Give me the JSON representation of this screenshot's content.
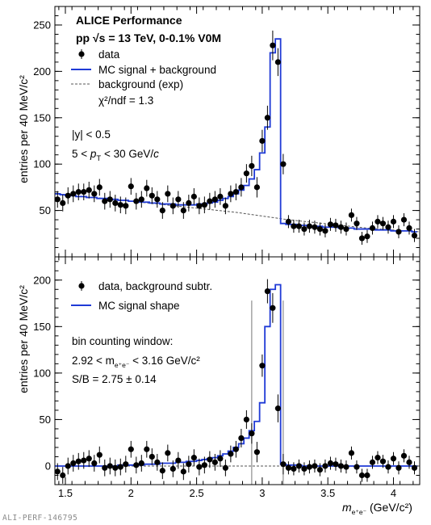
{
  "footer_id": "ALI-PERF-146795",
  "chart_data": [
    {
      "type": "scatter",
      "panel": "top",
      "xlim": [
        1.42,
        4.2
      ],
      "ylim": [
        0,
        270
      ],
      "xticks": [
        1.5,
        2,
        2.5,
        3,
        3.5,
        4
      ],
      "xtick_labels": [
        "1.5",
        "2",
        "2.5",
        "3",
        "3.5",
        "4"
      ],
      "yticks": [
        50,
        100,
        150,
        200,
        250
      ],
      "ytick_labels": [
        "50",
        "100",
        "150",
        "200",
        "250"
      ],
      "ylabel": "entries per 40 MeV/c²",
      "title_lines": [
        "ALICE Performance",
        "pp  √s = 13 TeV, 0-0.1% V0M"
      ],
      "legend": [
        {
          "marker": "point",
          "label": "data"
        },
        {
          "marker": "line-blue",
          "label": "MC signal + background"
        },
        {
          "marker": "line-dashed",
          "label": "background (exp)"
        }
      ],
      "fit_text": "χ²/ndf =  1.3",
      "cut_texts": [
        "|y| < 0.5",
        "5 < pT < 30 GeV/c"
      ],
      "data_points": {
        "x": [
          1.44,
          1.48,
          1.52,
          1.56,
          1.6,
          1.64,
          1.68,
          1.72,
          1.76,
          1.8,
          1.84,
          1.88,
          1.92,
          1.96,
          2.0,
          2.04,
          2.08,
          2.12,
          2.16,
          2.2,
          2.24,
          2.28,
          2.32,
          2.36,
          2.4,
          2.44,
          2.48,
          2.52,
          2.56,
          2.6,
          2.64,
          2.68,
          2.72,
          2.76,
          2.8,
          2.84,
          2.88,
          2.92,
          2.96,
          3.0,
          3.04,
          3.08,
          3.12,
          3.16,
          3.2,
          3.24,
          3.28,
          3.32,
          3.36,
          3.4,
          3.44,
          3.48,
          3.52,
          3.56,
          3.6,
          3.64,
          3.68,
          3.72,
          3.76,
          3.8,
          3.84,
          3.88,
          3.92,
          3.96,
          4.0,
          4.04,
          4.08,
          4.12,
          4.16
        ],
        "y": [
          62,
          58,
          66,
          68,
          70,
          70,
          72,
          68,
          75,
          60,
          62,
          58,
          56,
          55,
          76,
          60,
          62,
          74,
          66,
          62,
          50,
          68,
          55,
          62,
          50,
          58,
          65,
          55,
          56,
          60,
          62,
          65,
          55,
          68,
          70,
          75,
          90,
          98,
          75,
          125,
          150,
          228,
          210,
          100,
          38,
          33,
          33,
          30,
          33,
          32,
          30,
          28,
          35,
          34,
          32,
          30,
          45,
          36,
          20,
          22,
          31,
          38,
          36,
          32,
          38,
          27,
          40,
          31,
          23
        ],
        "err": [
          9,
          9,
          9,
          9,
          9,
          9,
          9,
          9,
          9,
          9,
          9,
          9,
          9,
          9,
          9,
          9,
          9,
          9,
          9,
          9,
          9,
          9,
          9,
          9,
          9,
          9,
          9,
          9,
          9,
          9,
          9,
          9,
          9,
          9,
          9,
          10,
          10,
          11,
          11,
          12,
          13,
          16,
          15,
          11,
          7,
          7,
          7,
          7,
          7,
          7,
          7,
          7,
          7,
          7,
          7,
          7,
          7,
          7,
          7,
          7,
          7,
          7,
          7,
          7,
          7,
          7,
          7,
          7,
          7
        ]
      },
      "model_hist": {
        "edges": [
          1.42,
          1.46,
          1.5,
          1.54,
          1.58,
          1.62,
          1.66,
          1.7,
          1.74,
          1.78,
          1.82,
          1.86,
          1.9,
          1.94,
          1.98,
          2.02,
          2.06,
          2.1,
          2.14,
          2.18,
          2.22,
          2.26,
          2.3,
          2.34,
          2.38,
          2.42,
          2.46,
          2.5,
          2.54,
          2.58,
          2.62,
          2.66,
          2.7,
          2.74,
          2.78,
          2.82,
          2.86,
          2.9,
          2.94,
          2.98,
          3.02,
          3.06,
          3.1,
          3.14,
          3.18,
          3.22,
          3.26,
          3.3,
          3.34,
          3.38,
          3.42,
          3.46,
          3.5,
          3.54,
          3.58,
          3.62,
          3.66,
          3.7,
          3.74,
          3.78,
          3.82,
          3.86,
          3.9,
          3.94,
          3.98,
          4.02,
          4.06,
          4.1,
          4.14,
          4.18
        ],
        "values": [
          68,
          67,
          66,
          66,
          65,
          65,
          64,
          64,
          63,
          63,
          62,
          62,
          61,
          61,
          60,
          60,
          59,
          59,
          58,
          58,
          57,
          57,
          57,
          56,
          56,
          56,
          56,
          57,
          57,
          58,
          59,
          61,
          63,
          65,
          68,
          72,
          77,
          84,
          94,
          112,
          140,
          220,
          235,
          36,
          35,
          35,
          34,
          34,
          33,
          33,
          33,
          32,
          32,
          32,
          31,
          31,
          31,
          30,
          30,
          30,
          30,
          29,
          29,
          29,
          28,
          28,
          28,
          28,
          27
        ]
      },
      "background_curve": {
        "x": [
          1.42,
          1.6,
          1.8,
          2.0,
          2.2,
          2.4,
          2.6,
          2.8,
          3.0,
          3.2,
          3.4,
          3.6,
          3.8,
          4.0,
          4.2
        ],
        "y": [
          68,
          65,
          63,
          60,
          57,
          54,
          51,
          48,
          44,
          40,
          37,
          34,
          31,
          29,
          27
        ]
      }
    },
    {
      "type": "scatter",
      "panel": "bottom",
      "xlim": [
        1.42,
        4.2
      ],
      "ylim": [
        -20,
        225
      ],
      "xticks": [
        1.5,
        2,
        2.5,
        3,
        3.5,
        4
      ],
      "xtick_labels": [
        "1.5",
        "2",
        "2.5",
        "3",
        "3.5",
        "4"
      ],
      "yticks": [
        0,
        50,
        100,
        150,
        200
      ],
      "ytick_labels": [
        "0",
        "50",
        "100",
        "150",
        "200"
      ],
      "ylabel": "entries per 40 MeV/c²",
      "xlabel_main": "m",
      "xlabel_sub": "e⁺e⁻",
      "xlabel_unit": "(GeV/c²)",
      "legend": [
        {
          "marker": "point",
          "label": "data, background subtr."
        },
        {
          "marker": "line-blue",
          "label": "MC signal shape"
        }
      ],
      "window_text": "bin counting window:",
      "window_range": "2.92 < m",
      "window_range_sub": "e⁺e⁻",
      "window_range_end": " < 3.16  GeV/c²",
      "sb_text": "S/B = 2.75 ± 0.14",
      "window_lines": [
        2.92,
        3.16
      ],
      "data_points": {
        "x": [
          1.44,
          1.48,
          1.52,
          1.56,
          1.6,
          1.64,
          1.68,
          1.72,
          1.76,
          1.8,
          1.84,
          1.88,
          1.92,
          1.96,
          2.0,
          2.04,
          2.08,
          2.12,
          2.16,
          2.2,
          2.24,
          2.28,
          2.32,
          2.36,
          2.4,
          2.44,
          2.48,
          2.52,
          2.56,
          2.6,
          2.64,
          2.68,
          2.72,
          2.76,
          2.8,
          2.84,
          2.88,
          2.92,
          2.96,
          3.0,
          3.04,
          3.08,
          3.12,
          3.16,
          3.2,
          3.24,
          3.28,
          3.32,
          3.36,
          3.4,
          3.44,
          3.48,
          3.52,
          3.56,
          3.6,
          3.64,
          3.68,
          3.72,
          3.76,
          3.8,
          3.84,
          3.88,
          3.92,
          3.96,
          4.0,
          4.04,
          4.08,
          4.12,
          4.16
        ],
        "y": [
          -6,
          -10,
          0,
          3,
          5,
          6,
          8,
          3,
          12,
          -2,
          0,
          -2,
          -1,
          2,
          18,
          1,
          3,
          18,
          10,
          4,
          -5,
          14,
          -3,
          6,
          -6,
          2,
          9,
          -1,
          1,
          7,
          4,
          8,
          -2,
          13,
          18,
          30,
          50,
          35,
          15,
          108,
          188,
          170,
          62,
          2,
          -2,
          -3,
          0,
          -3,
          -1,
          0,
          -4,
          0,
          3,
          2,
          0,
          -1,
          14,
          -1,
          -10,
          -10,
          4,
          9,
          5,
          -1,
          8,
          -2,
          11,
          4,
          -2
        ],
        "err": [
          9,
          9,
          9,
          9,
          9,
          9,
          9,
          9,
          9,
          9,
          9,
          9,
          9,
          9,
          9,
          9,
          9,
          9,
          9,
          9,
          9,
          9,
          9,
          9,
          9,
          9,
          9,
          9,
          9,
          9,
          9,
          9,
          9,
          9,
          9,
          10,
          10,
          11,
          11,
          12,
          13,
          16,
          15,
          11,
          7,
          7,
          7,
          7,
          7,
          7,
          7,
          7,
          7,
          7,
          7,
          7,
          7,
          7,
          7,
          7,
          7,
          7,
          7,
          7,
          7,
          7,
          7,
          7,
          7
        ]
      },
      "model_hist": {
        "edges": [
          1.42,
          1.46,
          1.5,
          1.54,
          1.58,
          1.62,
          1.66,
          1.7,
          1.74,
          1.78,
          1.82,
          1.86,
          1.9,
          1.94,
          1.98,
          2.02,
          2.06,
          2.1,
          2.14,
          2.18,
          2.22,
          2.26,
          2.3,
          2.34,
          2.38,
          2.42,
          2.46,
          2.5,
          2.54,
          2.58,
          2.62,
          2.66,
          2.7,
          2.74,
          2.78,
          2.82,
          2.86,
          2.9,
          2.94,
          2.98,
          3.02,
          3.06,
          3.1,
          3.14,
          3.18,
          3.22,
          3.26,
          3.3,
          3.34,
          3.38,
          3.42,
          3.46,
          3.5,
          3.54,
          3.58,
          3.62,
          3.66,
          3.7,
          3.74,
          3.78,
          3.82,
          3.86,
          3.9,
          3.94,
          3.98,
          4.02,
          4.06,
          4.1,
          4.14,
          4.18
        ],
        "values": [
          0,
          0,
          0,
          0,
          0,
          0,
          0,
          0,
          0,
          0,
          0,
          0,
          1,
          1,
          1,
          1,
          1,
          2,
          2,
          2,
          3,
          3,
          3,
          4,
          4,
          5,
          5,
          6,
          7,
          8,
          9,
          11,
          13,
          16,
          20,
          24,
          30,
          38,
          48,
          68,
          150,
          190,
          195,
          2,
          1,
          1,
          1,
          0,
          0,
          0,
          0,
          0,
          0,
          0,
          0,
          0,
          0,
          0,
          0,
          0,
          0,
          0,
          0,
          0,
          0,
          0,
          0,
          0,
          0
        ]
      },
      "zero_line": true
    }
  ]
}
